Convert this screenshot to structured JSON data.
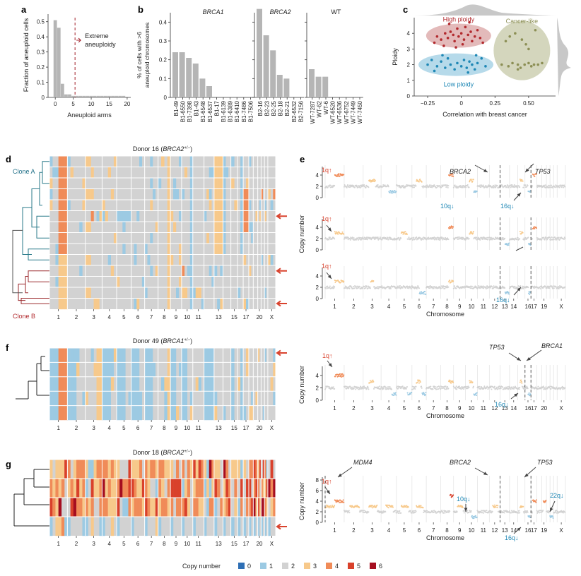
{
  "panel_letters": {
    "a": "a",
    "b": "b",
    "c": "c",
    "d": "d",
    "e": "e",
    "f": "f",
    "g": "g"
  },
  "colors": {
    "gray": "#b5b5b5",
    "cn0": "#2e6fb5",
    "cn1": "#9ccae3",
    "cn2": "#d2d2d2",
    "cn3": "#f7c98b",
    "cn4": "#f08b58",
    "cn5": "#d9412b",
    "cn6": "#a50e20",
    "red": "#b22a2e",
    "blue": "#1e87b5",
    "olive": "#8c8f55",
    "teal": "#1f6f87",
    "arrow": "#d9432e"
  },
  "chart_data": [
    {
      "id": "a",
      "type": "bar",
      "xlabel": "Aneuploid arms",
      "ylabel": "Fraction of aneuploid cells",
      "xlim": [
        -2,
        21
      ],
      "ylim": [
        0,
        0.55
      ],
      "xticks": [
        0,
        5,
        10,
        15,
        20
      ],
      "yticks": [
        0,
        0.1,
        0.2,
        0.3,
        0.4,
        0.5
      ],
      "x": [
        0,
        1,
        2,
        3,
        4,
        5,
        6,
        7,
        8,
        9,
        10,
        11,
        12,
        13,
        14,
        15,
        16,
        17,
        18,
        19
      ],
      "values": [
        0.51,
        0.46,
        0.09,
        0.02,
        0.02,
        0.01,
        0.01,
        0.01,
        0.01,
        0.01,
        0.01,
        0.01,
        0.01,
        0.01,
        0.01,
        0.01,
        0.01,
        0.01,
        0.01,
        0.01
      ],
      "threshold": 5.5,
      "annotation": "Extreme\naneuploidy"
    },
    {
      "id": "b",
      "type": "bar",
      "ylabel": "% of cells with >6\naneuploid chromosomes",
      "ylim": [
        0,
        0.45
      ],
      "yticks": [
        0,
        0.1,
        0.2,
        0.3,
        0.4
      ],
      "groups": [
        {
          "title": "BRCA1",
          "italic": true,
          "categories": [
            "B1-49",
            "B1-6550",
            "B1-7398",
            "B1-43",
            "B1-6548",
            "B1-6537",
            "B1-17",
            "B1-6139",
            "B1-6389",
            "B1-6410",
            "B1-7486",
            "B1-7506"
          ],
          "values": [
            0.24,
            0.24,
            0.21,
            0.18,
            0.1,
            0.06,
            0,
            0,
            0,
            0,
            0,
            0
          ]
        },
        {
          "title": "BRCA2",
          "italic": true,
          "categories": [
            "B2-16",
            "B2-23",
            "B2-25",
            "B2-18",
            "B2-21",
            "B2-6532",
            "B2-7156"
          ],
          "values": [
            0.47,
            0.33,
            0.25,
            0.12,
            0.1,
            0,
            0
          ]
        },
        {
          "title": "WT",
          "italic": false,
          "categories": [
            "WT-7287",
            "WT-62",
            "WT-6",
            "WT-6520",
            "WT-6536",
            "WT-6752",
            "WT-7449",
            "WT-7450"
          ],
          "values": [
            0.15,
            0.11,
            0.11,
            0,
            0,
            0,
            0,
            0
          ]
        }
      ]
    },
    {
      "id": "c",
      "type": "scatter",
      "xlabel": "Correlation with breast cancer",
      "ylabel": "Ploidy",
      "xlim": [
        -0.35,
        0.7
      ],
      "ylim": [
        0,
        5
      ],
      "xticks": [
        -0.25,
        0,
        0.25,
        0.5
      ],
      "xticklabels": [
        "−0.25",
        "0",
        "0.25",
        "0.50"
      ],
      "yticks": [
        0,
        1,
        2,
        3,
        4
      ],
      "series": [
        {
          "name": "High ploidy",
          "points": [
            [
              -0.2,
              3.4
            ],
            [
              -0.18,
              3.8
            ],
            [
              -0.15,
              3.6
            ],
            [
              -0.12,
              4.0
            ],
            [
              -0.1,
              3.7
            ],
            [
              -0.08,
              4.1
            ],
            [
              -0.06,
              3.9
            ],
            [
              -0.05,
              3.5
            ],
            [
              -0.03,
              4.3
            ],
            [
              -0.02,
              3.8
            ],
            [
              0,
              4.0
            ],
            [
              0.02,
              3.6
            ],
            [
              0.03,
              4.4
            ],
            [
              0.05,
              3.9
            ],
            [
              0.07,
              4.1
            ],
            [
              0.08,
              3.5
            ],
            [
              0.1,
              3.8
            ],
            [
              0.12,
              4.2
            ],
            [
              0.14,
              3.7
            ],
            [
              -0.13,
              3.2
            ],
            [
              0.01,
              3.3
            ],
            [
              -0.09,
              4.6
            ],
            [
              0.06,
              4.7
            ],
            [
              -0.04,
              3.1
            ],
            [
              0.16,
              3.4
            ]
          ]
        },
        {
          "name": "Low ploidy",
          "points": [
            [
              -0.25,
              2.0
            ],
            [
              -0.22,
              2.3
            ],
            [
              -0.18,
              1.9
            ],
            [
              -0.15,
              2.2
            ],
            [
              -0.12,
              1.8
            ],
            [
              -0.1,
              2.4
            ],
            [
              -0.08,
              2.0
            ],
            [
              -0.05,
              1.7
            ],
            [
              -0.03,
              2.1
            ],
            [
              0,
              1.9
            ],
            [
              0.02,
              2.3
            ],
            [
              0.04,
              1.8
            ],
            [
              0.06,
              2.2
            ],
            [
              0.08,
              2.0
            ],
            [
              0.1,
              1.7
            ],
            [
              0.12,
              2.1
            ],
            [
              0.15,
              2.4
            ],
            [
              0.18,
              1.9
            ],
            [
              -0.2,
              1.6
            ],
            [
              0.05,
              1.5
            ],
            [
              -0.14,
              2.6
            ],
            [
              0.11,
              2.6
            ]
          ]
        },
        {
          "name": "Cancer-like",
          "points": [
            [
              0.3,
              2.0
            ],
            [
              0.33,
              3.5
            ],
            [
              0.35,
              1.9
            ],
            [
              0.38,
              2.1
            ],
            [
              0.4,
              4.0
            ],
            [
              0.42,
              2.0
            ],
            [
              0.44,
              1.8
            ],
            [
              0.45,
              3.6
            ],
            [
              0.47,
              2.0
            ],
            [
              0.48,
              3.3
            ],
            [
              0.5,
              2.1
            ],
            [
              0.52,
              1.9
            ],
            [
              0.54,
              2.0
            ],
            [
              0.55,
              4.2
            ],
            [
              0.57,
              2.0
            ],
            [
              0.6,
              2.1
            ],
            [
              0.36,
              3.8
            ],
            [
              0.5,
              3.0
            ],
            [
              0.42,
              1.7
            ]
          ]
        }
      ]
    },
    {
      "id": "d",
      "type": "heatmap",
      "title": "Donor 16 (",
      "title_italic": "BRCA2",
      "title_sup": "+/−",
      "title_end": ")",
      "clone_a": "Clone A",
      "clone_b": "Clone B",
      "chromosome_labels": [
        "1",
        "2",
        "3",
        "4",
        "5",
        "6",
        "7",
        "8",
        "9",
        "10",
        "11",
        "13",
        "15",
        "17",
        "20",
        "X"
      ],
      "value_legend": "copy number 0–6"
    },
    {
      "id": "e",
      "type": "scatter",
      "xlabel": "Chromosome",
      "ylabel": "Copy number",
      "yticks": [
        0,
        2,
        4
      ],
      "ylim": [
        0,
        5
      ],
      "chromosome_labels": [
        "1",
        "2",
        "3",
        "4",
        "5",
        "6",
        "7",
        "8",
        "9",
        "10",
        "11",
        "12",
        "13",
        "14",
        "16",
        "17",
        "19",
        "X"
      ],
      "annotations": [
        "1q↑",
        "BRCA2",
        "TP53",
        "10q↓",
        "16q↓"
      ]
    },
    {
      "id": "f",
      "type": "heatmap",
      "title": "Donor 49 (",
      "title_italic": "BRCA1",
      "title_sup": "+/−",
      "title_end": ")",
      "chromosome_labels": [
        "1",
        "2",
        "3",
        "4",
        "5",
        "6",
        "7",
        "8",
        "9",
        "10",
        "11",
        "13",
        "15",
        "17",
        "20",
        "X"
      ]
    },
    {
      "id": "f2",
      "type": "scatter",
      "xlabel": "Chromosome",
      "ylabel": "Copy number",
      "yticks": [
        0,
        2,
        4
      ],
      "chromosome_labels": [
        "1",
        "2",
        "3",
        "4",
        "5",
        "6",
        "7",
        "8",
        "9",
        "10",
        "11",
        "12",
        "13",
        "14",
        "16",
        "17",
        "20",
        "X"
      ],
      "annotations": [
        "1q↑",
        "TP53",
        "BRCA1",
        "16q↓"
      ]
    },
    {
      "id": "g",
      "type": "heatmap",
      "title": "Donor 18 (",
      "title_italic": "BRCA2",
      "title_sup": "+/−",
      "title_end": ")",
      "chromosome_labels": [
        "1",
        "2",
        "3",
        "4",
        "5",
        "6",
        "7",
        "8",
        "9",
        "10",
        "11",
        "13",
        "15",
        "17",
        "20",
        "X"
      ]
    },
    {
      "id": "g2",
      "type": "scatter",
      "xlabel": "Chromosome",
      "ylabel": "Copy number",
      "yticks": [
        0,
        2,
        4,
        6,
        8
      ],
      "chromosome_labels": [
        "1",
        "2",
        "3",
        "4",
        "5",
        "6",
        "7",
        "8",
        "9",
        "10",
        "11",
        "12",
        "13",
        "14",
        "16",
        "17",
        "19",
        "X"
      ],
      "annotations": [
        "1q↑",
        "MDM4",
        "BRCA2",
        "TP53",
        "10q↓",
        "16q↓",
        "22q↓"
      ]
    }
  ],
  "legend": {
    "title": "Copy number",
    "items": [
      "0",
      "1",
      "2",
      "3",
      "4",
      "5",
      "6"
    ]
  }
}
